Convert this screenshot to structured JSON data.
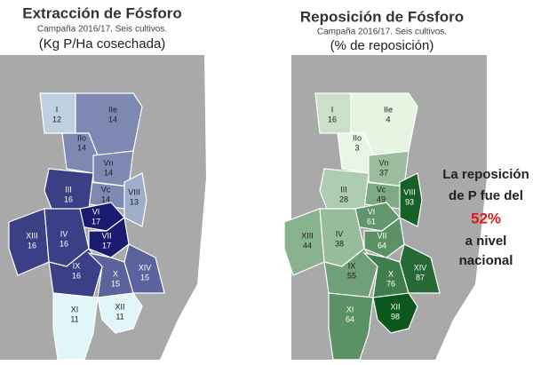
{
  "maps": [
    {
      "title": "Extracción de Fósforo",
      "subtitle": "Campaña 2016/17. Seis cultivos.",
      "unit": "(Kg P/Ha cosechada)",
      "regions": [
        {
          "label": "I",
          "value": 12
        },
        {
          "label": "IIe",
          "value": 14
        },
        {
          "label": "IIo",
          "value": 14
        },
        {
          "label": "Vn",
          "value": 14
        },
        {
          "label": "Vc",
          "value": 14
        },
        {
          "label": "VIII",
          "value": 13
        },
        {
          "label": "III",
          "value": 16
        },
        {
          "label": "VI",
          "value": 17
        },
        {
          "label": "VII",
          "value": 17
        },
        {
          "label": "XIII",
          "value": 16
        },
        {
          "label": "IV",
          "value": 16
        },
        {
          "label": "IX",
          "value": 16
        },
        {
          "label": "X",
          "value": 15
        },
        {
          "label": "XIV",
          "value": 15
        },
        {
          "label": "XI",
          "value": 11
        },
        {
          "label": "XII",
          "value": 11
        }
      ]
    },
    {
      "title": "Reposición de Fósforo",
      "subtitle": "Campaña 2016/17. Seis cultivos.",
      "unit": "(% de reposición)",
      "regions": [
        {
          "label": "I",
          "value": 16
        },
        {
          "label": "IIe",
          "value": 4
        },
        {
          "label": "IIo",
          "value": 3
        },
        {
          "label": "Vn",
          "value": 37
        },
        {
          "label": "Vc",
          "value": 49
        },
        {
          "label": "VIII",
          "value": 93
        },
        {
          "label": "III",
          "value": 28
        },
        {
          "label": "VI",
          "value": 61
        },
        {
          "label": "VII",
          "value": 64
        },
        {
          "label": "XIII",
          "value": 44
        },
        {
          "label": "IV",
          "value": 38
        },
        {
          "label": "IX",
          "value": 55
        },
        {
          "label": "X",
          "value": 76
        },
        {
          "label": "XIV",
          "value": 87
        },
        {
          "label": "XI",
          "value": 64
        },
        {
          "label": "XII",
          "value": 98
        }
      ]
    }
  ],
  "note": [
    "La reposición",
    "de P fue del",
    "52%",
    "a nivel",
    "nacional"
  ]
}
